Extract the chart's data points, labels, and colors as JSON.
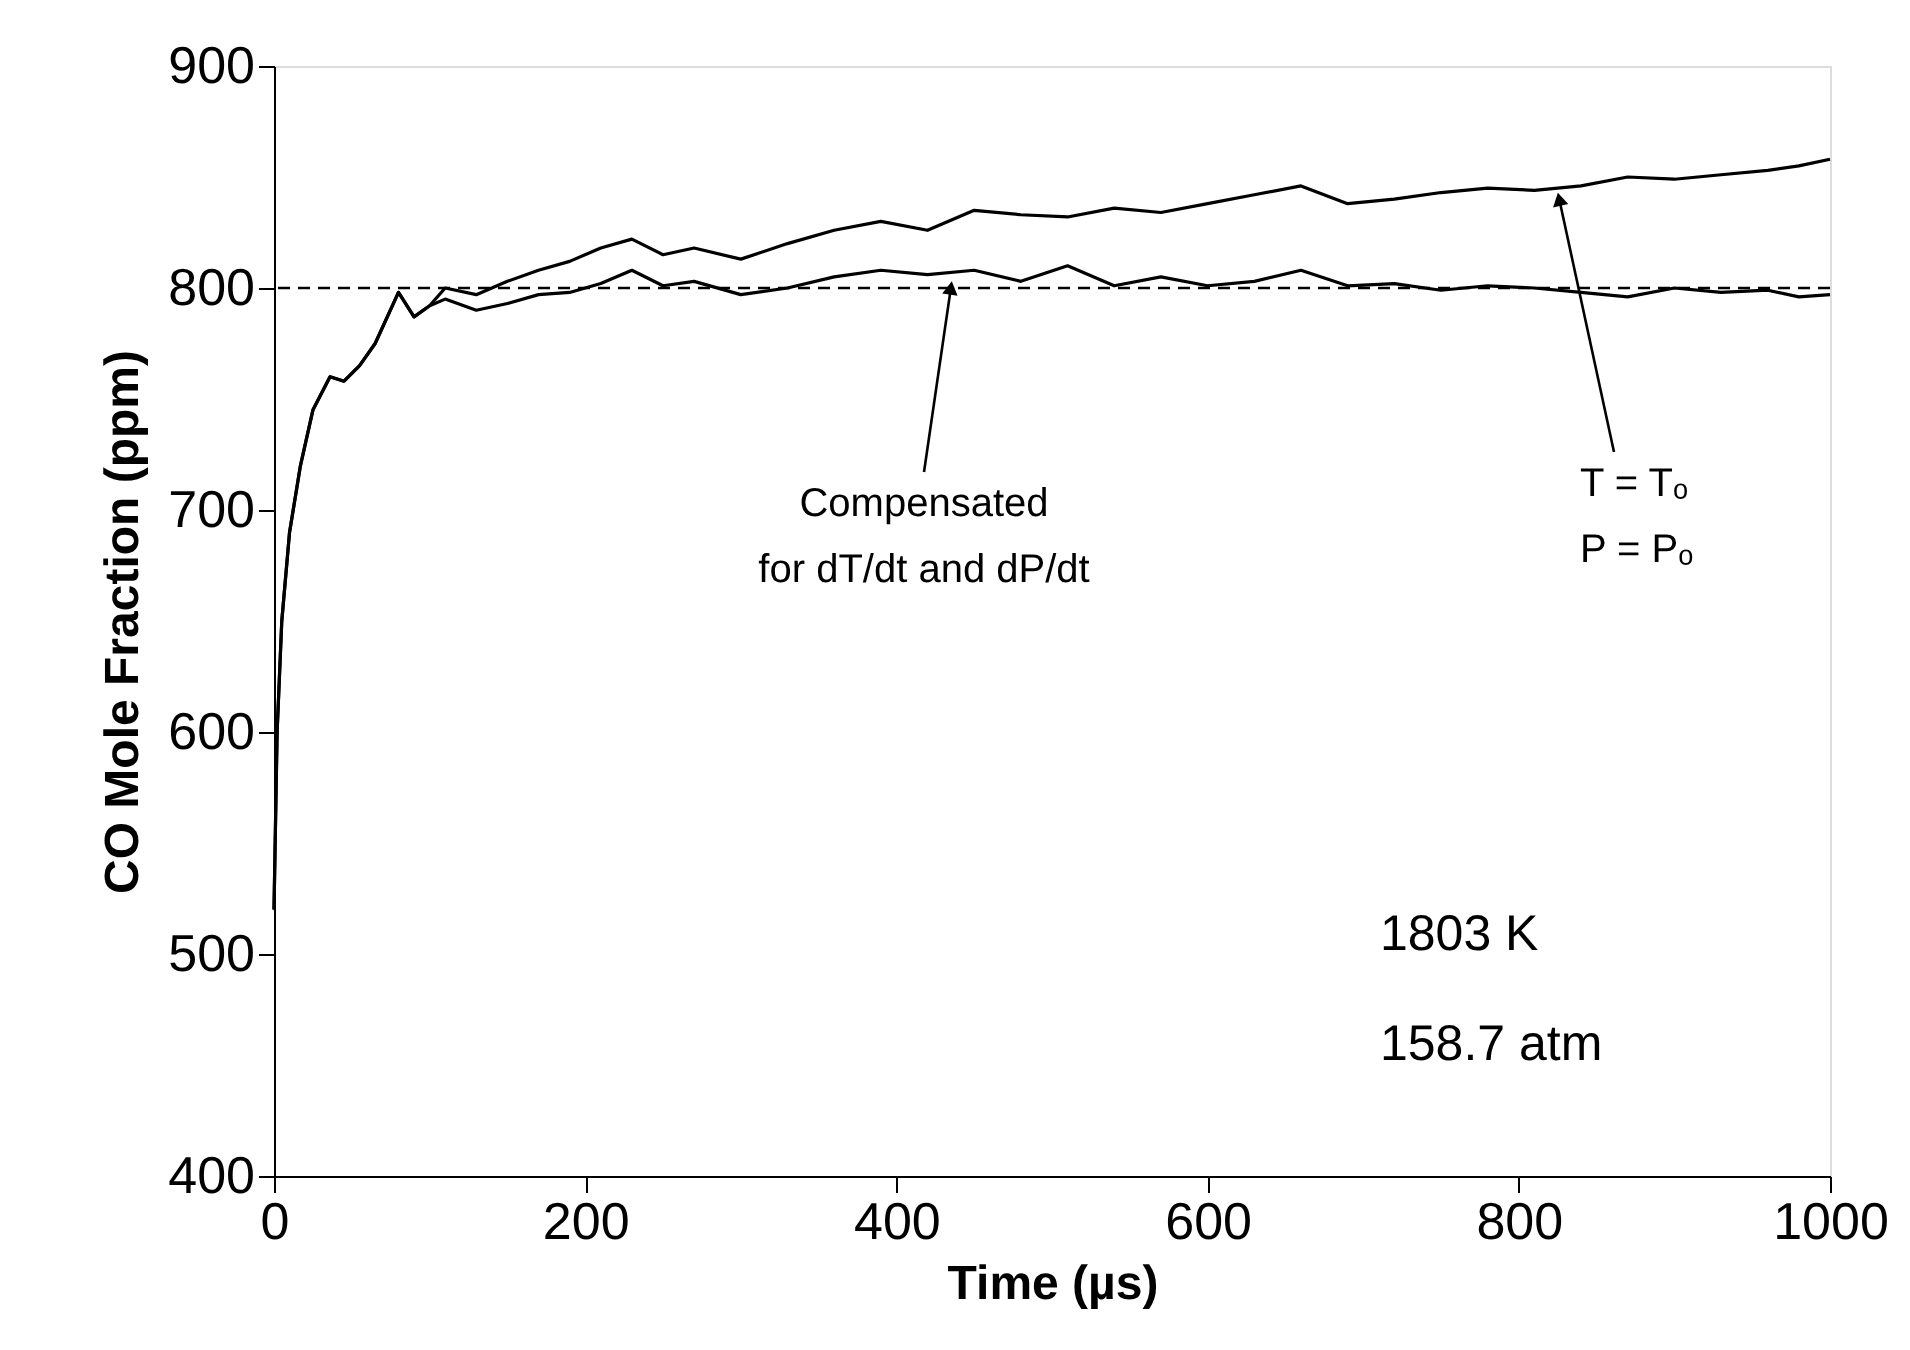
{
  "chart_data": {
    "type": "line",
    "xlabel": "Time (µs)",
    "ylabel": "CO Mole Fraction (ppm)",
    "xlim": [
      0,
      1000
    ],
    "xticks": [
      0,
      200,
      400,
      600,
      800,
      1000
    ],
    "ylim": [
      400,
      900
    ],
    "yticks": [
      400,
      500,
      600,
      700,
      800,
      900
    ],
    "grid": false,
    "marker": "none",
    "line_style": "solid",
    "series": [
      {
        "color": "#000000",
        "x": [
          0,
          2,
          5,
          10,
          17,
          25,
          36,
          45,
          55,
          65,
          80,
          90,
          100,
          110,
          130,
          150,
          170,
          190,
          210,
          230,
          250,
          270,
          300,
          330,
          360,
          390,
          420,
          450,
          480,
          510,
          540,
          570,
          600,
          630,
          660,
          690,
          720,
          750,
          780,
          810,
          840,
          870,
          900,
          930,
          960,
          980,
          1000
        ],
        "values": [
          520,
          600,
          650,
          690,
          720,
          745,
          760,
          758,
          765,
          775,
          798,
          787,
          792,
          800,
          797,
          803,
          808,
          812,
          818,
          822,
          815,
          818,
          813,
          820,
          826,
          830,
          826,
          835,
          833,
          832,
          836,
          834,
          838,
          842,
          846,
          838,
          840,
          843,
          845,
          844,
          846,
          850,
          849,
          851,
          853,
          855,
          858
        ]
      },
      {
        "color": "#000000",
        "x": [
          0,
          2,
          5,
          10,
          17,
          25,
          36,
          45,
          55,
          65,
          80,
          90,
          100,
          110,
          130,
          150,
          170,
          190,
          210,
          230,
          250,
          270,
          300,
          330,
          360,
          390,
          420,
          450,
          480,
          510,
          540,
          570,
          600,
          630,
          660,
          690,
          720,
          750,
          780,
          810,
          840,
          870,
          900,
          930,
          960,
          980,
          1000
        ],
        "values": [
          520,
          600,
          650,
          690,
          720,
          745,
          760,
          758,
          765,
          775,
          798,
          787,
          792,
          795,
          790,
          793,
          797,
          798,
          802,
          808,
          801,
          803,
          797,
          800,
          805,
          808,
          806,
          808,
          803,
          810,
          801,
          805,
          801,
          803,
          808,
          801,
          802,
          799,
          801,
          800,
          798,
          796,
          800,
          798,
          799,
          796,
          797
        ]
      }
    ],
    "ref_lines": [
      {
        "axis": "y",
        "value": 800,
        "line_style": "dashed",
        "color": "#000000"
      }
    ],
    "annotations": [
      {
        "text": "Compensated\nfor dT/dt and dP/dt",
        "x": 435,
        "y": 800
      },
      {
        "text": "T = Tₒ\nP = Pₒ",
        "x": 826,
        "y": 840
      },
      "1803 K",
      "158.7 atm"
    ]
  }
}
